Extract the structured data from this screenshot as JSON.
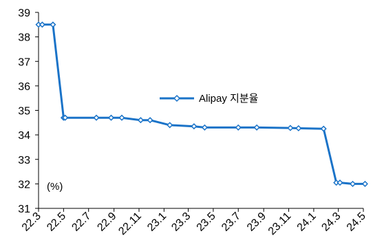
{
  "chart_data": {
    "type": "line",
    "title": "",
    "xlabel": "",
    "ylabel": "",
    "unit_label": "(%)",
    "legend_position": "center-right",
    "grid": false,
    "ylim": [
      31,
      39
    ],
    "y_ticks": [
      31,
      32,
      33,
      34,
      35,
      36,
      37,
      38,
      39
    ],
    "x_range": [
      "2022-03",
      "2024-05"
    ],
    "x_tick_labels": [
      "22.3",
      "22.5",
      "22.7",
      "22.9",
      "22.11",
      "23.1",
      "23.3",
      "23.5",
      "23.7",
      "23.9",
      "23.11",
      "24.1",
      "24.3",
      "24.5"
    ],
    "colors": {
      "series": "#1a73c8"
    },
    "series": [
      {
        "name": "Alipay 지분율",
        "points": [
          {
            "x": "2022-03-01",
            "y": 38.5
          },
          {
            "x": "2022-03-10",
            "y": 38.5
          },
          {
            "x": "2022-04-05",
            "y": 38.5
          },
          {
            "x": "2022-05-01",
            "y": 34.7
          },
          {
            "x": "2022-05-05",
            "y": 34.7
          },
          {
            "x": "2022-07-20",
            "y": 34.7
          },
          {
            "x": "2022-08-25",
            "y": 34.7
          },
          {
            "x": "2022-09-20",
            "y": 34.7
          },
          {
            "x": "2022-11-05",
            "y": 34.6
          },
          {
            "x": "2022-11-28",
            "y": 34.6
          },
          {
            "x": "2023-01-15",
            "y": 34.4
          },
          {
            "x": "2023-03-15",
            "y": 34.35
          },
          {
            "x": "2023-04-10",
            "y": 34.3
          },
          {
            "x": "2023-07-01",
            "y": 34.3
          },
          {
            "x": "2023-08-15",
            "y": 34.3
          },
          {
            "x": "2023-11-05",
            "y": 34.28
          },
          {
            "x": "2023-11-25",
            "y": 34.27
          },
          {
            "x": "2024-01-25",
            "y": 34.25
          },
          {
            "x": "2024-02-25",
            "y": 32.05
          },
          {
            "x": "2024-03-05",
            "y": 32.05
          },
          {
            "x": "2024-04-05",
            "y": 32.0
          },
          {
            "x": "2024-05-05",
            "y": 32.0
          }
        ]
      }
    ]
  }
}
